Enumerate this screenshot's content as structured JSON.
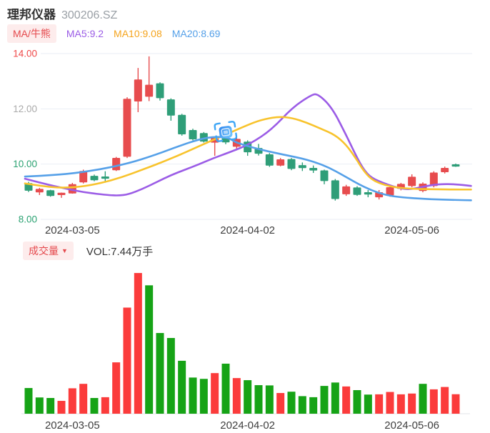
{
  "header": {
    "title": "理邦仪器",
    "code": "300206.SZ"
  },
  "legend": {
    "indicator": "MA/牛熊",
    "ma5": "MA5:9.2",
    "ma10": "MA10:9.08",
    "ma20": "MA20:8.69"
  },
  "volume_header": {
    "label": "成交量",
    "dropdown_icon": "▼",
    "vol": "VOL:7.44万手"
  },
  "colors": {
    "candle_up": "#e74c4e",
    "candle_down": "#2f9e78",
    "volume_up": "#fb3b3b",
    "volume_down": "#16a316",
    "ma5": "#9b5ce6",
    "ma10": "#f8c32c",
    "ma20": "#55a0e8",
    "grid": "#e9eef4",
    "axis_text_up": "#f04848",
    "axis_text_mid": "#aaaaaa",
    "axis_text_down": "#2ba272",
    "date_text": "#3f3f3f",
    "chip_bg": "#fdecec",
    "chip_text": "#e5494d"
  },
  "marker": {
    "name": "blue-stamp",
    "candle_index": 19,
    "price": 11.15
  },
  "chart_data": [
    {
      "type": "candlestick",
      "title": "理邦仪器 300206.SZ 日K",
      "ylim": [
        8,
        14
      ],
      "grid": true,
      "yticks": [
        {
          "label": "14.00",
          "value": 14,
          "color": "#f04848"
        },
        {
          "label": "12.00",
          "value": 12,
          "color": "#aaaaaa"
        },
        {
          "label": "10.00",
          "value": 10,
          "color": "#2ba272"
        },
        {
          "label": "8.00",
          "value": 8,
          "color": "#2ba272"
        }
      ],
      "xticks": [
        {
          "label": "2024-03-05",
          "index": 5
        },
        {
          "label": "2024-04-02",
          "index": 21
        },
        {
          "label": "2024-05-06",
          "index": 36
        }
      ],
      "candles": [
        {
          "o": 9.3,
          "h": 9.36,
          "l": 8.99,
          "c": 9.05,
          "dir": "down"
        },
        {
          "o": 8.99,
          "h": 9.14,
          "l": 8.88,
          "c": 9.09,
          "dir": "up"
        },
        {
          "o": 9.04,
          "h": 9.07,
          "l": 8.82,
          "c": 8.86,
          "dir": "down"
        },
        {
          "o": 8.9,
          "h": 8.97,
          "l": 8.78,
          "c": 8.95,
          "dir": "up"
        },
        {
          "o": 8.95,
          "h": 9.32,
          "l": 8.93,
          "c": 9.26,
          "dir": "up"
        },
        {
          "o": 9.35,
          "h": 9.8,
          "l": 9.3,
          "c": 9.74,
          "dir": "up"
        },
        {
          "o": 9.56,
          "h": 9.62,
          "l": 9.38,
          "c": 9.43,
          "dir": "down"
        },
        {
          "o": 9.54,
          "h": 9.74,
          "l": 9.33,
          "c": 9.5,
          "dir": "down"
        },
        {
          "o": 9.79,
          "h": 10.26,
          "l": 9.75,
          "c": 10.21,
          "dir": "up"
        },
        {
          "o": 10.28,
          "h": 12.42,
          "l": 10.22,
          "c": 12.35,
          "dir": "up"
        },
        {
          "o": 12.28,
          "h": 13.48,
          "l": 11.88,
          "c": 13.05,
          "dir": "up"
        },
        {
          "o": 12.45,
          "h": 13.9,
          "l": 12.28,
          "c": 12.86,
          "dir": "up"
        },
        {
          "o": 12.91,
          "h": 12.96,
          "l": 12.3,
          "c": 12.4,
          "dir": "down"
        },
        {
          "o": 12.33,
          "h": 12.38,
          "l": 11.57,
          "c": 11.77,
          "dir": "down"
        },
        {
          "o": 11.77,
          "h": 11.82,
          "l": 11.03,
          "c": 11.09,
          "dir": "down"
        },
        {
          "o": 11.22,
          "h": 11.28,
          "l": 10.86,
          "c": 10.91,
          "dir": "down"
        },
        {
          "o": 11.11,
          "h": 11.16,
          "l": 10.78,
          "c": 10.83,
          "dir": "down"
        },
        {
          "o": 10.79,
          "h": 11.0,
          "l": 10.3,
          "c": 10.96,
          "dir": "up"
        },
        {
          "o": 10.95,
          "h": 11.0,
          "l": 10.72,
          "c": 10.8,
          "dir": "down"
        },
        {
          "o": 10.64,
          "h": 10.95,
          "l": 10.5,
          "c": 10.9,
          "dir": "up"
        },
        {
          "o": 10.8,
          "h": 10.86,
          "l": 10.3,
          "c": 10.44,
          "dir": "down"
        },
        {
          "o": 10.57,
          "h": 10.73,
          "l": 10.31,
          "c": 10.39,
          "dir": "down"
        },
        {
          "o": 10.34,
          "h": 10.4,
          "l": 9.9,
          "c": 9.96,
          "dir": "down"
        },
        {
          "o": 9.96,
          "h": 10.22,
          "l": 9.92,
          "c": 10.16,
          "dir": "up"
        },
        {
          "o": 10.17,
          "h": 10.22,
          "l": 9.78,
          "c": 9.84,
          "dir": "down"
        },
        {
          "o": 9.95,
          "h": 10.06,
          "l": 9.75,
          "c": 9.87,
          "dir": "down"
        },
        {
          "o": 9.85,
          "h": 9.95,
          "l": 9.68,
          "c": 9.78,
          "dir": "down"
        },
        {
          "o": 9.76,
          "h": 9.8,
          "l": 9.27,
          "c": 9.4,
          "dir": "down"
        },
        {
          "o": 9.4,
          "h": 9.46,
          "l": 8.68,
          "c": 8.75,
          "dir": "down"
        },
        {
          "o": 8.92,
          "h": 9.25,
          "l": 8.85,
          "c": 9.18,
          "dir": "up"
        },
        {
          "o": 9.14,
          "h": 9.2,
          "l": 8.85,
          "c": 8.9,
          "dir": "down"
        },
        {
          "o": 8.97,
          "h": 9.06,
          "l": 8.8,
          "c": 8.92,
          "dir": "down"
        },
        {
          "o": 8.81,
          "h": 9.06,
          "l": 8.72,
          "c": 8.97,
          "dir": "up"
        },
        {
          "o": 8.88,
          "h": 9.2,
          "l": 8.82,
          "c": 9.15,
          "dir": "up"
        },
        {
          "o": 9.12,
          "h": 9.32,
          "l": 9.05,
          "c": 9.27,
          "dir": "up"
        },
        {
          "o": 9.22,
          "h": 9.63,
          "l": 9.16,
          "c": 9.53,
          "dir": "up"
        },
        {
          "o": 9.04,
          "h": 9.34,
          "l": 8.98,
          "c": 9.28,
          "dir": "up"
        },
        {
          "o": 9.22,
          "h": 9.74,
          "l": 9.16,
          "c": 9.68,
          "dir": "up"
        },
        {
          "o": 9.72,
          "h": 9.91,
          "l": 9.66,
          "c": 9.85,
          "dir": "up"
        },
        {
          "o": 9.98,
          "h": 10.02,
          "l": 9.9,
          "c": 9.96,
          "dir": "down"
        }
      ],
      "series": [
        {
          "name": "MA5",
          "color": "#9b5ce6",
          "points": [
            [
              0.67,
              9.47
            ],
            [
              2.3,
              9.3
            ],
            [
              4.3,
              9.12
            ],
            [
              6.2,
              8.97
            ],
            [
              8.2,
              8.88
            ],
            [
              9.2,
              8.86
            ],
            [
              10.1,
              8.9
            ],
            [
              11.4,
              9.1
            ],
            [
              12.7,
              9.35
            ],
            [
              14.0,
              9.6
            ],
            [
              15.3,
              9.8
            ],
            [
              16.6,
              10.0
            ],
            [
              17.9,
              10.22
            ],
            [
              19.3,
              10.42
            ],
            [
              21.2,
              10.72
            ],
            [
              23.2,
              11.25
            ],
            [
              25.1,
              12.05
            ],
            [
              26.8,
              12.5
            ],
            [
              27.4,
              12.55
            ],
            [
              28.7,
              12.05
            ],
            [
              30.0,
              11.05
            ],
            [
              30.9,
              10.3
            ],
            [
              31.6,
              9.8
            ],
            [
              32.3,
              9.5
            ],
            [
              33.6,
              9.28
            ],
            [
              34.9,
              9.12
            ],
            [
              35.9,
              9.08
            ],
            [
              37.2,
              9.2
            ],
            [
              38.5,
              9.28
            ],
            [
              40.1,
              9.27
            ],
            [
              41.4,
              9.21
            ]
          ]
        },
        {
          "name": "MA10",
          "color": "#f8c32c",
          "points": [
            [
              0.67,
              9.3
            ],
            [
              2.3,
              9.2
            ],
            [
              3.9,
              9.14
            ],
            [
              5.6,
              9.17
            ],
            [
              7.5,
              9.3
            ],
            [
              9.5,
              9.52
            ],
            [
              11.4,
              9.8
            ],
            [
              13.4,
              10.1
            ],
            [
              15.3,
              10.42
            ],
            [
              17.3,
              10.78
            ],
            [
              19.3,
              11.12
            ],
            [
              20.9,
              11.4
            ],
            [
              22.2,
              11.6
            ],
            [
              23.8,
              11.72
            ],
            [
              25.1,
              11.67
            ],
            [
              26.4,
              11.5
            ],
            [
              27.7,
              11.28
            ],
            [
              29.0,
              11.05
            ],
            [
              30.0,
              10.7
            ],
            [
              30.9,
              10.2
            ],
            [
              31.6,
              9.75
            ],
            [
              32.3,
              9.45
            ],
            [
              33.2,
              9.28
            ],
            [
              34.5,
              9.15
            ],
            [
              36.2,
              9.1
            ],
            [
              38.1,
              9.09
            ],
            [
              40.0,
              9.08
            ],
            [
              41.4,
              9.08
            ]
          ]
        },
        {
          "name": "MA20",
          "color": "#55a0e8",
          "points": [
            [
              0.67,
              9.55
            ],
            [
              3.6,
              9.6
            ],
            [
              6.9,
              9.76
            ],
            [
              10.1,
              10.02
            ],
            [
              12.7,
              10.35
            ],
            [
              14.7,
              10.65
            ],
            [
              16.6,
              10.9
            ],
            [
              18.0,
              11.0
            ],
            [
              19.3,
              10.95
            ],
            [
              19.9,
              10.78
            ],
            [
              21.9,
              10.55
            ],
            [
              23.8,
              10.38
            ],
            [
              25.8,
              10.22
            ],
            [
              27.1,
              10.08
            ],
            [
              28.4,
              9.88
            ],
            [
              29.7,
              9.6
            ],
            [
              31.0,
              9.3
            ],
            [
              32.3,
              9.05
            ],
            [
              33.6,
              8.88
            ],
            [
              34.9,
              8.8
            ],
            [
              37.5,
              8.73
            ],
            [
              40.1,
              8.7
            ],
            [
              41.4,
              8.69
            ]
          ]
        }
      ]
    },
    {
      "type": "bar",
      "name": "成交量 (万手)",
      "unit": "万手",
      "latest_label": "VOL:7.44万手",
      "values": [
        9.8,
        6.2,
        6.0,
        4.9,
        9.7,
        11.4,
        6.0,
        6.3,
        19.6,
        40.5,
        53.7,
        49.0,
        30.8,
        28.9,
        20.2,
        13.8,
        13.3,
        15.5,
        19.1,
        13.6,
        12.8,
        10.9,
        10.8,
        7.9,
        8.4,
        6.7,
        6.3,
        10.6,
        11.9,
        10.4,
        9.0,
        7.3,
        7.4,
        8.3,
        7.4,
        7.7,
        11.4,
        9.3,
        10.2,
        7.44
      ],
      "dirs": [
        "down",
        "down",
        "down",
        "up",
        "up",
        "up",
        "down",
        "up",
        "up",
        "up",
        "up",
        "down",
        "down",
        "down",
        "down",
        "down",
        "down",
        "up",
        "down",
        "up",
        "down",
        "down",
        "down",
        "up",
        "down",
        "down",
        "down",
        "down",
        "down",
        "up",
        "down",
        "down",
        "up",
        "up",
        "up",
        "up",
        "down",
        "up",
        "up",
        "up"
      ],
      "xticks": [
        {
          "label": "2024-03-05",
          "index": 5
        },
        {
          "label": "2024-04-02",
          "index": 21
        },
        {
          "label": "2024-05-06",
          "index": 36
        }
      ]
    }
  ]
}
